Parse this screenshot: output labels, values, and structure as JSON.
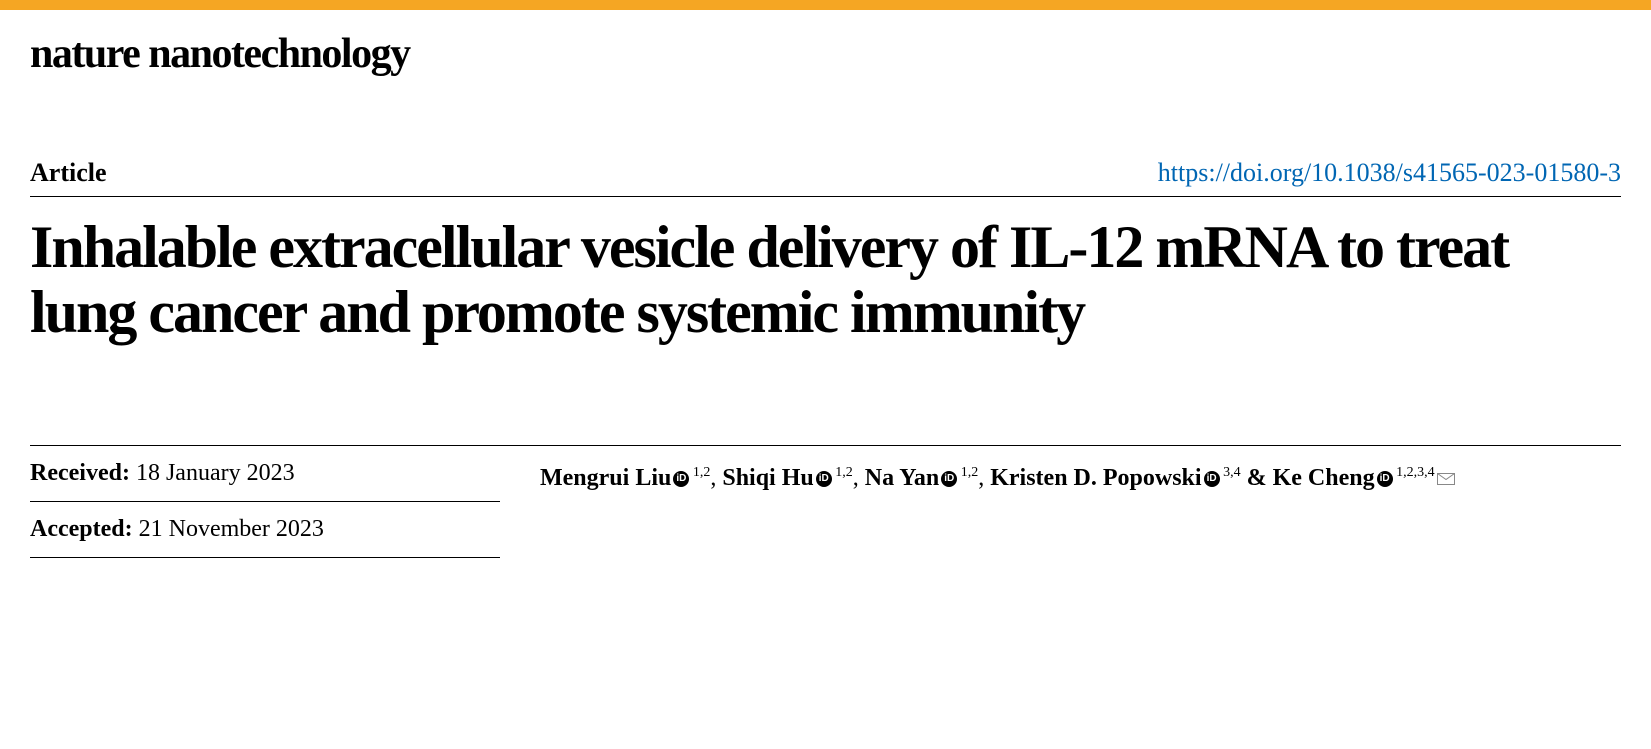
{
  "brand": {
    "top_bar_color": "#f5a623",
    "journal_name": "nature nanotechnology",
    "journal_fontsize": 42
  },
  "header": {
    "article_label": "Article",
    "article_label_fontsize": 26,
    "doi_text": "https://doi.org/10.1038/s41565-023-01580-3",
    "doi_href": "https://doi.org/10.1038/s41565-023-01580-3",
    "doi_color": "#0066b3",
    "doi_fontsize": 26
  },
  "title": {
    "text": "Inhalable extracellular vesicle delivery of IL-12 mRNA to treat lung cancer and promote systemic immunity",
    "fontsize": 60,
    "color": "#000000"
  },
  "meta": {
    "received_label": "Received:",
    "received_date": "18 January 2023",
    "accepted_label": "Accepted:",
    "accepted_date": "21 November 2023",
    "meta_fontsize": 24,
    "authors": [
      {
        "name": "Mengrui Liu",
        "orcid": true,
        "affil": "1,2",
        "corresponding": false
      },
      {
        "name": "Shiqi Hu",
        "orcid": true,
        "affil": "1,2",
        "corresponding": false
      },
      {
        "name": "Na Yan",
        "orcid": true,
        "affil": "1,2",
        "corresponding": false
      },
      {
        "name": "Kristen D. Popowski",
        "orcid": true,
        "affil": "3,4",
        "corresponding": false
      },
      {
        "name": "Ke Cheng",
        "orcid": true,
        "affil": "1,2,3,4",
        "corresponding": true
      }
    ],
    "author_fontsize": 24
  },
  "colors": {
    "text": "#000000",
    "divider": "#000000",
    "background": "#ffffff"
  }
}
